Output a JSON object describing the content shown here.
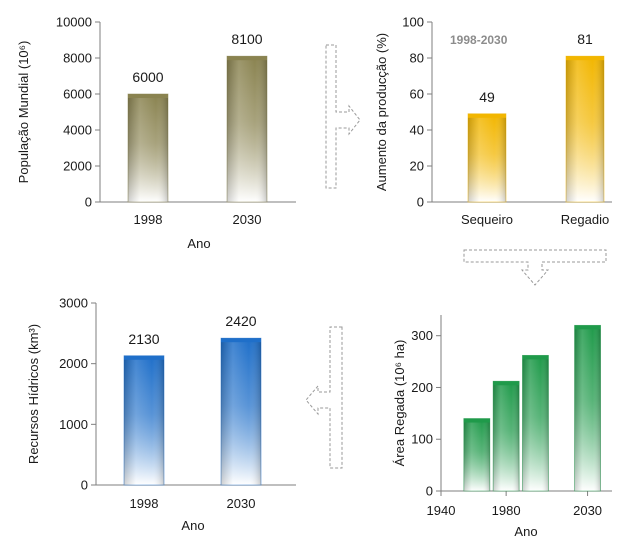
{
  "colors": {
    "olive": "#8a8350",
    "gold": "#f2b600",
    "blue": "#1f6fc9",
    "green": "#1f9a4a",
    "arrow_stroke": "#9a9a9a"
  },
  "chart_data": [
    {
      "type": "bar",
      "id": "population",
      "categories": [
        "1998",
        "2030"
      ],
      "values": [
        6000,
        8100
      ],
      "data_labels": [
        "6000",
        "8100"
      ],
      "xlabel": "Ano",
      "ylabel": "População Mundial (10⁶)",
      "ylim": [
        0,
        10000
      ],
      "yticks": [
        0,
        2000,
        4000,
        6000,
        8000,
        10000
      ],
      "color": "#8a8350",
      "grid": false
    },
    {
      "type": "bar",
      "id": "production",
      "categories": [
        "Sequeiro",
        "Regadio"
      ],
      "values": [
        49,
        81
      ],
      "data_labels": [
        "49",
        "81"
      ],
      "xlabel": "",
      "ylabel": "Aumento da producção (%)",
      "ylim": [
        0,
        100
      ],
      "yticks": [
        0,
        20,
        40,
        60,
        80,
        100
      ],
      "annotation": "1998-2030",
      "color": "#f2b600",
      "grid": false
    },
    {
      "type": "bar",
      "id": "water",
      "categories": [
        "1998",
        "2030"
      ],
      "values": [
        2130,
        2420
      ],
      "data_labels": [
        "2130",
        "2420"
      ],
      "xlabel": "Ano",
      "ylabel": "Recursos Hídricos (km³)",
      "ylim": [
        0,
        3000
      ],
      "yticks": [
        0,
        1000,
        2000,
        3000
      ],
      "color": "#1f6fc9",
      "grid": false
    },
    {
      "type": "bar",
      "id": "irrigated",
      "x": [
        1962,
        1980,
        1998,
        2030
      ],
      "values": [
        140,
        212,
        262,
        320
      ],
      "xlabel": "Ano",
      "ylabel": "Área Regada (10⁶ ha)",
      "xticks": [
        1940,
        1980,
        2030
      ],
      "ylim": [
        0,
        340
      ],
      "yticks": [
        0,
        100,
        200,
        300
      ],
      "color": "#1f9a4a",
      "grid": false
    }
  ]
}
